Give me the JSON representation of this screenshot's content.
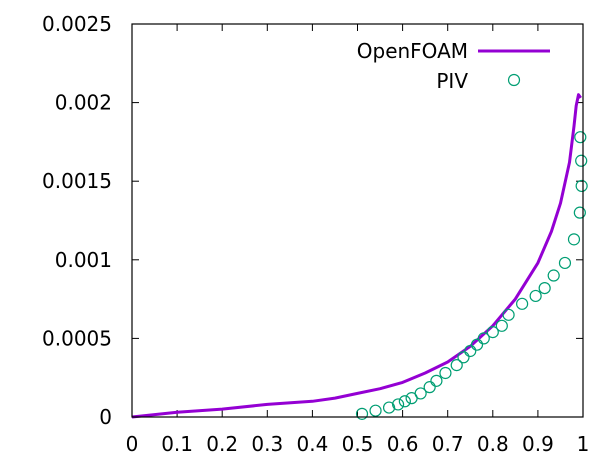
{
  "chart_data": {
    "type": "line",
    "title": "",
    "xlabel": "",
    "ylabel": "",
    "xlim": [
      0,
      1
    ],
    "ylim": [
      0,
      0.0025
    ],
    "grid": false,
    "legend_position": "top-right",
    "x_ticks": [
      0,
      0.1,
      0.2,
      0.3,
      0.4,
      0.5,
      0.6,
      0.7,
      0.8,
      0.9,
      1
    ],
    "x_tick_labels": [
      "0",
      "0.1",
      "0.2",
      "0.3",
      "0.4",
      "0.5",
      "0.6",
      "0.7",
      "0.8",
      "0.9",
      "1"
    ],
    "y_ticks": [
      0,
      0.0005,
      0.001,
      0.0015,
      0.002,
      0.0025
    ],
    "y_tick_labels": [
      "0",
      "0.0005",
      "0.001",
      "0.0015",
      "0.002",
      "0.0025"
    ],
    "series": [
      {
        "name": "OpenFOAM",
        "kind": "line",
        "color": "#9400d3",
        "x": [
          0,
          0.1,
          0.2,
          0.3,
          0.4,
          0.45,
          0.5,
          0.55,
          0.6,
          0.65,
          0.7,
          0.75,
          0.8,
          0.85,
          0.9,
          0.93,
          0.95,
          0.97,
          0.98,
          0.985,
          0.99,
          0.995
        ],
        "y": [
          0,
          3e-05,
          5e-05,
          8e-05,
          0.0001,
          0.00012,
          0.00015,
          0.00018,
          0.00022,
          0.00028,
          0.00035,
          0.00045,
          0.00058,
          0.00075,
          0.00098,
          0.00118,
          0.00136,
          0.00162,
          0.00185,
          0.00198,
          0.00205,
          0.00203
        ]
      },
      {
        "name": "PIV",
        "kind": "scatter",
        "color": "#009e73",
        "x": [
          0.51,
          0.54,
          0.57,
          0.59,
          0.605,
          0.62,
          0.64,
          0.66,
          0.675,
          0.695,
          0.72,
          0.735,
          0.75,
          0.765,
          0.78,
          0.8,
          0.82,
          0.835,
          0.865,
          0.895,
          0.915,
          0.935,
          0.96,
          0.98,
          0.993,
          0.997,
          0.996,
          0.994
        ],
        "y": [
          2e-05,
          4e-05,
          6e-05,
          8e-05,
          0.0001,
          0.00012,
          0.00015,
          0.00019,
          0.00023,
          0.00028,
          0.00033,
          0.00038,
          0.00042,
          0.00046,
          0.0005,
          0.00054,
          0.00058,
          0.00065,
          0.00072,
          0.00077,
          0.00082,
          0.0009,
          0.00098,
          0.00113,
          0.0013,
          0.00147,
          0.00163,
          0.00178
        ]
      }
    ]
  }
}
